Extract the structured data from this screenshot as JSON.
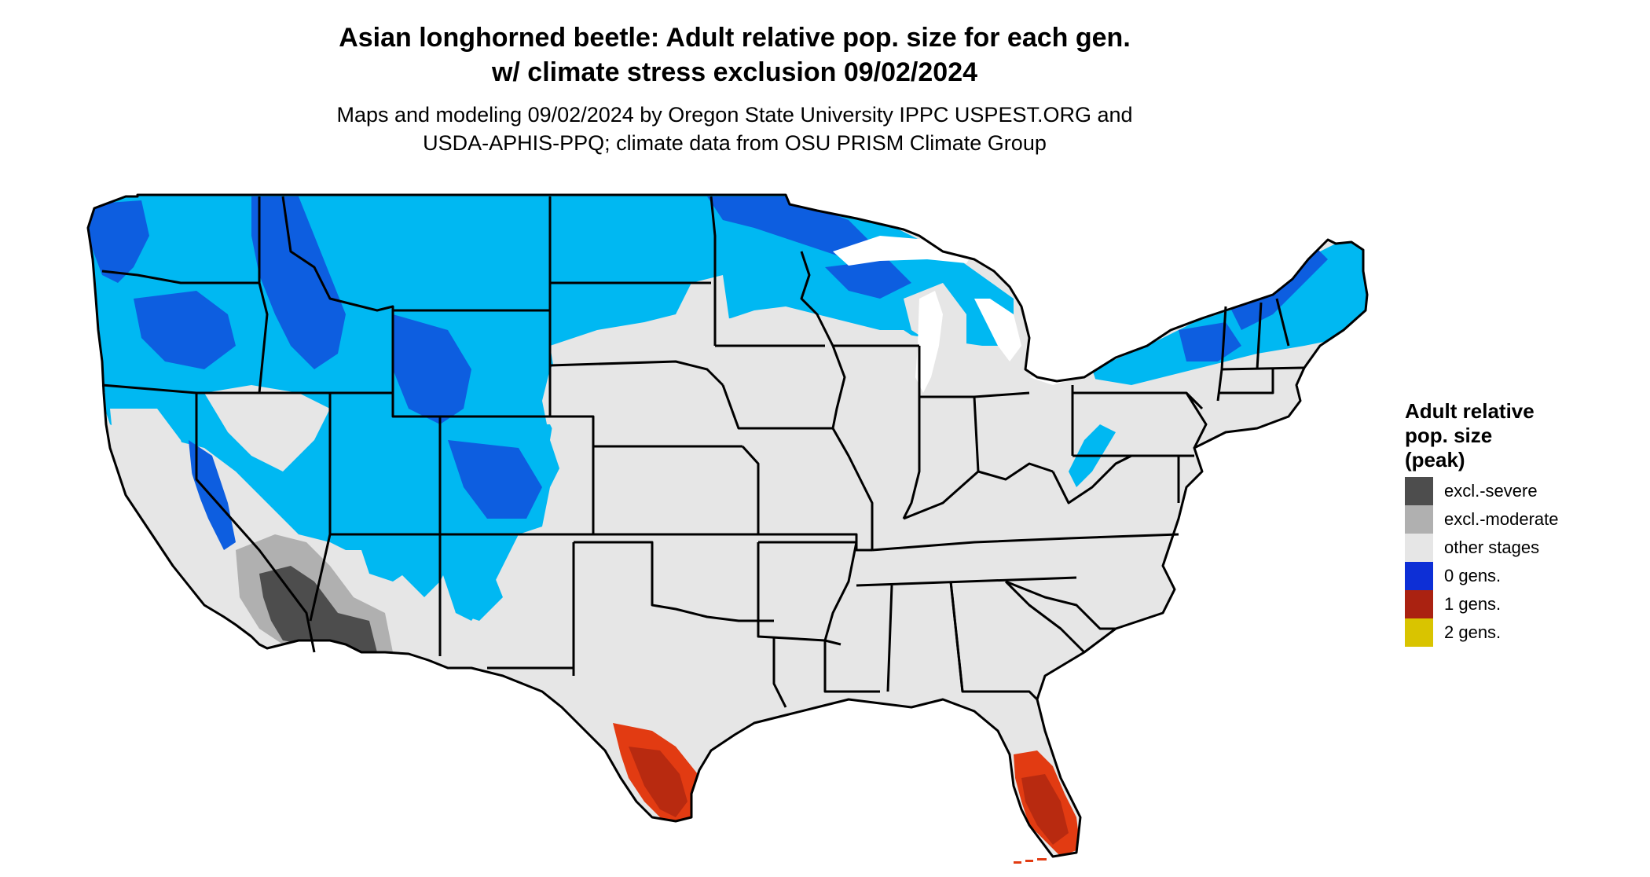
{
  "title": {
    "line1": "Asian longhorned beetle: Adult relative pop. size for each gen.",
    "line2": "w/ climate stress exclusion 09/02/2024"
  },
  "subtitle": {
    "line1": "Maps and modeling 09/02/2024 by Oregon State University IPPC USPEST.ORG and",
    "line2": "USDA-APHIS-PPQ; climate data from OSU PRISM Climate Group"
  },
  "legend": {
    "title_line1": "Adult relative",
    "title_line2": "pop. size",
    "title_line3": "(peak)",
    "items": [
      {
        "label": "excl.-severe",
        "color": "#4d4d4d"
      },
      {
        "label": "excl.-moderate",
        "color": "#b0b0b0"
      },
      {
        "label": "other stages",
        "color": "#e6e6e6"
      },
      {
        "label": "0 gens.",
        "color": "#0d2fd6"
      },
      {
        "label": "1 gens.",
        "color": "#aa2211"
      },
      {
        "label": "2 gens.",
        "color": "#d9c400"
      }
    ]
  },
  "map_colors": {
    "land": "#e6e6e6",
    "zero_gens_light": "#00b8f2",
    "zero_gens_dark": "#0d5ee0",
    "zero_gens_deep": "#0d2fd6",
    "one_gens": "#e23b12",
    "one_gens_dark": "#b82a10",
    "excl_severe": "#4d4d4d",
    "excl_moderate": "#b0b0b0",
    "border": "#000000"
  }
}
